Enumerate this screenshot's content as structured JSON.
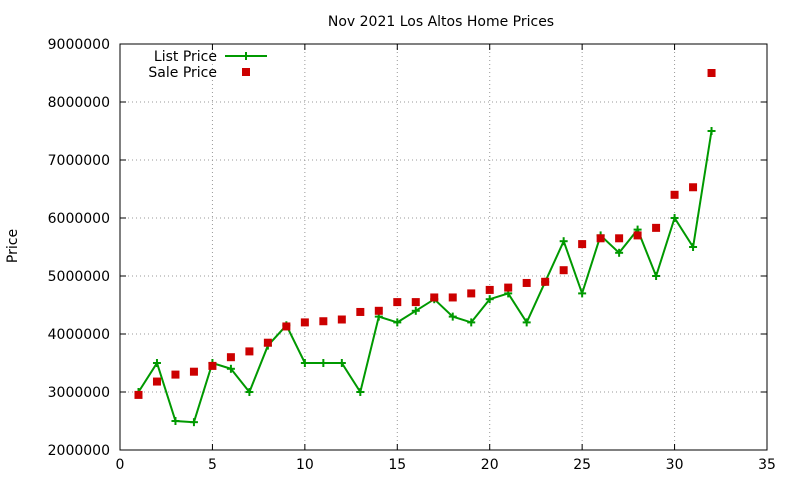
{
  "chart_data": {
    "type": "line",
    "title": "Nov 2021 Los Altos Home Prices",
    "xlabel": "",
    "ylabel": "Price",
    "xlim": [
      0,
      35
    ],
    "ylim": [
      2000000,
      9000000
    ],
    "x_ticks": [
      0,
      5,
      10,
      15,
      20,
      25,
      30,
      35
    ],
    "y_ticks": [
      2000000,
      3000000,
      4000000,
      5000000,
      6000000,
      7000000,
      8000000,
      9000000
    ],
    "x_tick_labels": [
      "0",
      "5",
      "10",
      "15",
      "20",
      "25",
      "30",
      "35"
    ],
    "y_tick_labels": [
      "2000000",
      "3000000",
      "4000000",
      "5000000",
      "6000000",
      "7000000",
      "8000000",
      "9000000"
    ],
    "grid": true,
    "legend_position": "top-left",
    "series": [
      {
        "name": "List Price",
        "style": "line-plus",
        "color": "#009900",
        "x": [
          1,
          2,
          3,
          4,
          5,
          6,
          7,
          8,
          9,
          10,
          11,
          12,
          13,
          14,
          15,
          16,
          17,
          18,
          19,
          20,
          21,
          22,
          23,
          24,
          25,
          26,
          27,
          28,
          29,
          30,
          31,
          32
        ],
        "values": [
          3000000,
          3500000,
          2500000,
          2480000,
          3500000,
          3400000,
          3000000,
          3800000,
          4150000,
          3500000,
          3500000,
          3500000,
          3000000,
          4300000,
          4200000,
          4400000,
          4600000,
          4300000,
          4200000,
          4600000,
          4700000,
          4200000,
          4900000,
          5600000,
          4700000,
          5700000,
          5400000,
          5800000,
          5000000,
          6000000,
          5500000,
          7500000
        ]
      },
      {
        "name": "Sale Price",
        "style": "square-points",
        "color": "#cc0000",
        "x": [
          1,
          2,
          3,
          4,
          5,
          6,
          7,
          8,
          9,
          10,
          11,
          12,
          13,
          14,
          15,
          16,
          17,
          18,
          19,
          20,
          21,
          22,
          23,
          24,
          25,
          26,
          27,
          28,
          29,
          30,
          31,
          32
        ],
        "values": [
          2950000,
          3180000,
          3300000,
          3350000,
          3450000,
          3600000,
          3700000,
          3850000,
          4130000,
          4200000,
          4220000,
          4250000,
          4380000,
          4400000,
          4550000,
          4550000,
          4630000,
          4630000,
          4700000,
          4760000,
          4800000,
          4880000,
          4900000,
          5100000,
          5550000,
          5650000,
          5650000,
          5700000,
          5830000,
          6400000,
          6530000,
          8500000
        ]
      }
    ]
  }
}
